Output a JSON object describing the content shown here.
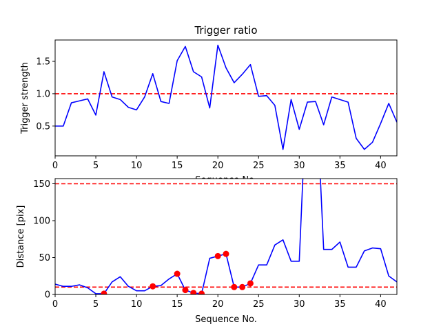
{
  "chart_data": [
    {
      "type": "line",
      "title": "Trigger ratio",
      "xlabel": "Sequence No.",
      "ylabel": "Trigger strength",
      "xlim": [
        0,
        42
      ],
      "ylim": [
        0.04,
        1.83
      ],
      "xticks": [
        0,
        5,
        10,
        15,
        20,
        25,
        30,
        35,
        40
      ],
      "yticks": [
        0.5,
        1.0,
        1.5
      ],
      "ytick_labels": [
        "0.5",
        "1.0",
        "1.5"
      ],
      "hlines": [
        {
          "y": 1.0,
          "color": "#ff0000",
          "style": "dashed"
        }
      ],
      "series": [
        {
          "color": "#0000ff",
          "x": [
            0,
            1,
            2,
            3,
            4,
            5,
            6,
            7,
            8,
            9,
            10,
            11,
            12,
            13,
            14,
            15,
            16,
            17,
            18,
            19,
            20,
            21,
            22,
            23,
            24,
            25,
            26,
            27,
            28,
            29,
            30,
            31,
            32,
            33,
            34,
            35,
            36,
            37,
            38,
            39,
            40,
            41,
            42
          ],
          "y": [
            0.5,
            0.5,
            0.86,
            0.89,
            0.92,
            0.67,
            1.34,
            0.95,
            0.91,
            0.79,
            0.75,
            0.95,
            1.31,
            0.88,
            0.85,
            1.51,
            1.73,
            1.34,
            1.26,
            0.78,
            1.75,
            1.4,
            1.17,
            1.3,
            1.45,
            0.96,
            0.97,
            0.82,
            0.14,
            0.91,
            0.45,
            0.87,
            0.88,
            0.52,
            0.95,
            0.91,
            0.87,
            0.31,
            0.14,
            0.25,
            0.54,
            0.85,
            0.56
          ]
        }
      ]
    },
    {
      "type": "line",
      "title": "",
      "xlabel": "Sequence No.",
      "ylabel": "Distance [pix]",
      "xlim": [
        0,
        42
      ],
      "ylim": [
        0,
        157
      ],
      "xticks": [
        0,
        5,
        10,
        15,
        20,
        25,
        30,
        35,
        40
      ],
      "yticks": [
        0,
        50,
        100,
        150
      ],
      "ytick_labels": [
        "0",
        "50",
        "100",
        "150"
      ],
      "hlines": [
        {
          "y": 150,
          "color": "#ff0000",
          "style": "dashed"
        },
        {
          "y": 10,
          "color": "#ff0000",
          "style": "dashed"
        }
      ],
      "series": [
        {
          "color": "#0000ff",
          "x": [
            0,
            1,
            2,
            3,
            4,
            5,
            6,
            7,
            8,
            9,
            10,
            11,
            12,
            13,
            14,
            15,
            16,
            17,
            18,
            19,
            20,
            21,
            22,
            23,
            24,
            25,
            26,
            27,
            28,
            29,
            30,
            31,
            32,
            33,
            34,
            35,
            36,
            37,
            38,
            39,
            40,
            41,
            42
          ],
          "y": [
            14,
            11,
            11,
            13,
            9,
            1,
            1,
            17,
            24,
            11,
            5,
            5,
            11,
            12,
            21,
            28,
            6,
            2,
            1,
            49,
            52,
            55,
            10,
            10,
            15,
            40,
            40,
            67,
            74,
            45,
            45,
            300,
            300,
            61,
            61,
            71,
            37,
            37,
            59,
            63,
            62,
            25,
            17
          ]
        }
      ],
      "markers": {
        "color": "#ff0000",
        "x": [
          6,
          12,
          15,
          16,
          17,
          18,
          20,
          21,
          22,
          23,
          24
        ],
        "y": [
          1,
          11,
          28,
          6,
          2,
          1,
          52,
          55,
          10,
          10,
          15
        ]
      }
    }
  ]
}
